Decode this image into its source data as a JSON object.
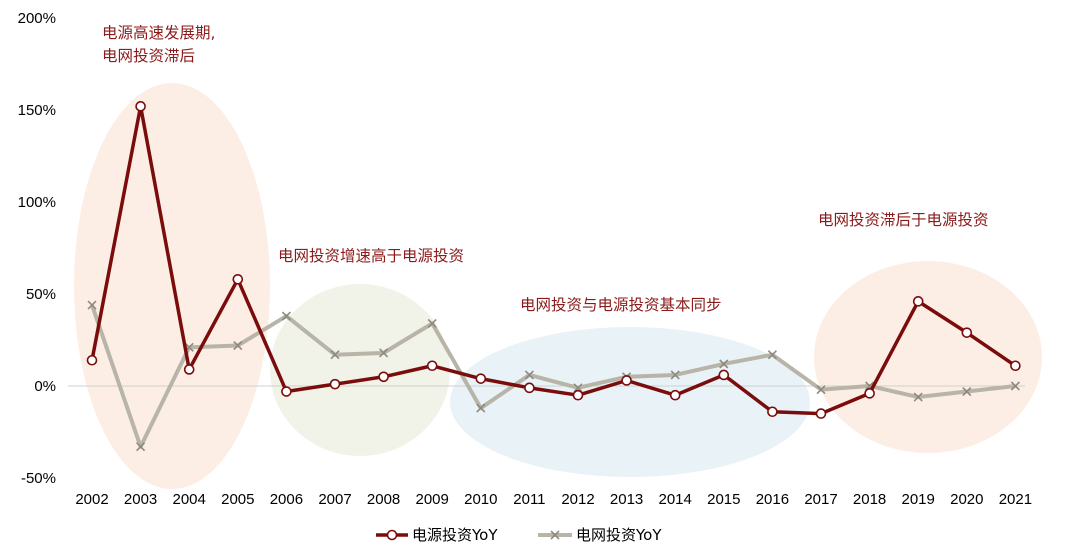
{
  "chart_data": {
    "type": "line",
    "categories": [
      "2002",
      "2003",
      "2004",
      "2005",
      "2006",
      "2007",
      "2008",
      "2009",
      "2010",
      "2011",
      "2012",
      "2013",
      "2014",
      "2015",
      "2016",
      "2017",
      "2018",
      "2019",
      "2020",
      "2021"
    ],
    "series": [
      {
        "name": "电源投资YoY",
        "color": "#7B0C0C",
        "marker": "circle",
        "values": [
          14,
          152,
          9,
          58,
          -3,
          1,
          5,
          11,
          4,
          -1,
          -5,
          3,
          -5,
          6,
          -14,
          -15,
          -4,
          46,
          29,
          11
        ]
      },
      {
        "name": "电网投资YoY",
        "color": "#B8B4A8",
        "marker": "x",
        "values": [
          44,
          -33,
          21,
          22,
          38,
          17,
          18,
          34,
          -12,
          6,
          -1,
          5,
          6,
          12,
          17,
          -2,
          0,
          -6,
          -3,
          0
        ]
      }
    ],
    "yticks": [
      "200%",
      "150%",
      "100%",
      "50%",
      "0%",
      "-50%"
    ],
    "ylim": [
      -50,
      200
    ],
    "grid": false,
    "legend_position": "bottom",
    "annotations": [
      {
        "lines": [
          "电源高速发展期,",
          "电网投资滞后"
        ]
      },
      {
        "lines": [
          "电网投资增速高于电源投资"
        ]
      },
      {
        "lines": [
          "电网投资与电源投资基本同步"
        ]
      },
      {
        "lines": [
          "电网投资滞后于电源投资"
        ]
      }
    ],
    "highlight_colors": [
      "#FCEBE0",
      "#EEF0E4",
      "#E4F0F6",
      "#FCEBE0"
    ]
  }
}
